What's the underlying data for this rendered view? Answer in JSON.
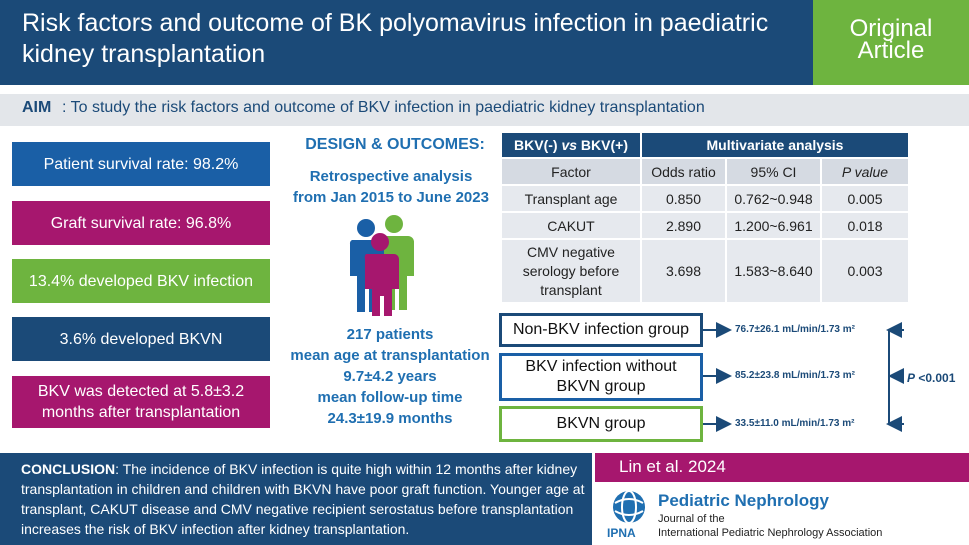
{
  "header": {
    "title": "Risk factors and outcome of BK polyomavirus infection in paediatric kidney transplantation",
    "badge_line1": "Original",
    "badge_line2": "Article"
  },
  "aim": {
    "label": "AIM",
    "text": ": To study the risk factors and outcome of BKV infection in paediatric kidney transplantation"
  },
  "stats": [
    {
      "text": "Patient survival rate: 98.2%",
      "color": "#1a5fa6"
    },
    {
      "text": "Graft survival rate: 96.8%",
      "color": "#a6176e"
    },
    {
      "text": "13.4% developed BKV infection",
      "color": "#6eb43f"
    },
    {
      "text": "3.6% developed BKVN",
      "color": "#1b4a78"
    },
    {
      "line1": "BKV was detected at 5.8±3.2",
      "line2": "months after transplantation",
      "color": "#a6176e"
    }
  ],
  "design": {
    "title": "DESIGN & OUTCOMES:",
    "line1": "Retrospective analysis",
    "line2": "from Jan 2015 to June 2023",
    "p1": "217 patients",
    "p2": "mean age at transplantation",
    "p3": "9.7±4.2 years",
    "p4": "mean follow-up time",
    "p5": "24.3±19.9 months",
    "icon": "people-group-icon"
  },
  "table": {
    "comparison": "BKV(-) vs BKV(+)",
    "comparison_pre": "BKV(-) ",
    "comparison_vs": "vs",
    "comparison_post": " BKV(+)",
    "analysis": "Multivariate analysis",
    "headers": [
      "Factor",
      "Odds ratio",
      "95% CI",
      "P value"
    ],
    "rows": [
      {
        "factor": "Transplant age",
        "or": "0.850",
        "ci": "0.762~0.948",
        "p": "0.005"
      },
      {
        "factor": "CAKUT",
        "or": "2.890",
        "ci": "1.200~6.961",
        "p": "0.018"
      },
      {
        "factor_l1": "CMV negative",
        "factor_l2": "serology before",
        "factor_l3": "transplant",
        "or": "3.698",
        "ci": "1.583~8.640",
        "p": "0.003"
      }
    ]
  },
  "groups": [
    {
      "name": "Non-BKV infection group",
      "gfr": "76.7±26.1 mL/min/1.73 m²",
      "color": "#1b4a78"
    },
    {
      "name_l1": "BKV infection without",
      "name_l2": "BKVN group",
      "gfr": "85.2±23.8 mL/min/1.73 m²",
      "color": "#1a5fa6"
    },
    {
      "name": "BKVN group",
      "gfr": "33.5±11.0 mL/min/1.73 m²",
      "color": "#6eb43f"
    }
  ],
  "pvalue": {
    "p": "P",
    "text": " <0.001"
  },
  "conclusion": {
    "label": "CONCLUSION",
    "text": ": The incidence of BKV infection is quite high within 12 months after kidney transplantation in children and children with BKVN have poor graft function. Younger age at transplant, CAKUT disease and CMV negative recipient serostatus before transplantation increases the risk of BKV infection after kidney transplantation."
  },
  "author": "Lin et al. 2024",
  "journal": {
    "title": "Pediatric Nephrology",
    "sub1": "Journal of the",
    "sub2": "International Pediatric Nephrology Association",
    "org": "IPNA",
    "logo": "globe-logo-icon"
  }
}
